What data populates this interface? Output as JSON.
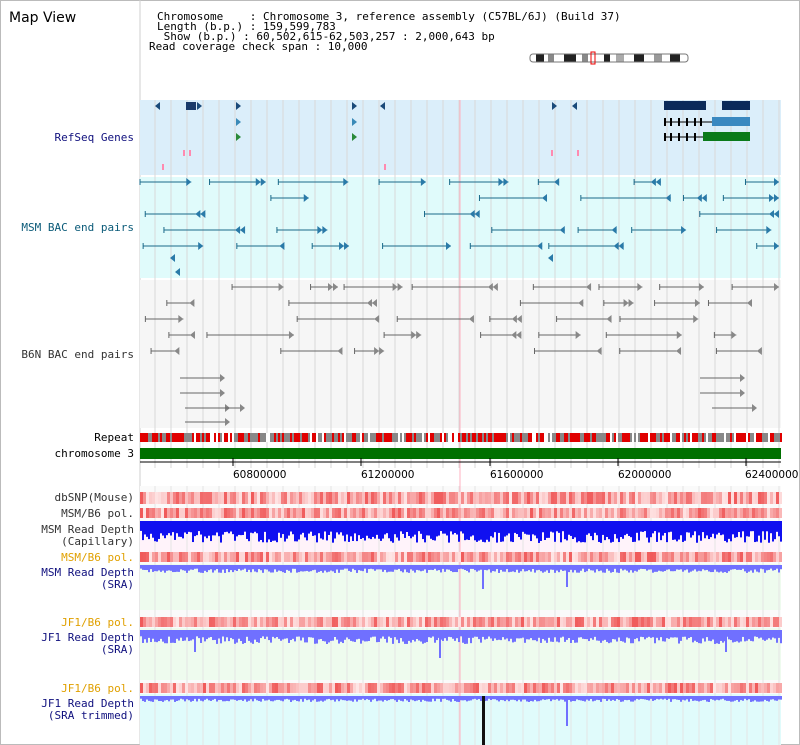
{
  "view_title": "Map View",
  "header": {
    "line1": "Chromosome    : Chromosome 3, reference assembly (C57BL/6J) (Build 37)",
    "line2": "Length (b.p.) : 159,599,783",
    "line3": " Show (b.p.) : 60,502,615-62,503,257 : 2,000,643 bp",
    "line4": "Read coverage check span : 10,000"
  },
  "tracks": {
    "refseq": "RefSeq Genes",
    "msm_bac": "MSM BAC end pairs",
    "b6n_bac": "B6N BAC end pairs",
    "repeat": "Repeat",
    "chromosome": "chromosome 3",
    "dbsnp": "dbSNP(Mouse)",
    "msm_b6_pol_1": "MSM/B6 pol.",
    "msm_depth_cap_1": "MSM Read Depth",
    "msm_depth_cap_2": "(Capillary)",
    "msm_b6_pol_2": "MSM/B6 pol.",
    "msm_depth_sra_1": "MSM Read Depth",
    "msm_depth_sra_2": "(SRA)",
    "jf1_b6_pol_1": "JF1/B6 pol.",
    "jf1_depth_sra_1": "JF1 Read Depth",
    "jf1_depth_sra_2": "(SRA)",
    "jf1_b6_pol_2": "JF1/B6 pol.",
    "jf1_depth_trim_1": "JF1 Read Depth",
    "jf1_depth_trim_2": "(SRA trimmed)"
  },
  "axis": {
    "ticks": [
      "60800000",
      "61200000",
      "61600000",
      "62000000",
      "62400000"
    ],
    "range_bp": [
      60502615,
      62503257
    ]
  },
  "colors": {
    "refseq_bg": "#dbeefa",
    "bac_bg": "#e0fbfb",
    "grid": "#d8d8d8",
    "chrom": "#007000",
    "repeat": "#e00000",
    "depth_blue": "#1010f0",
    "sra_blue": "#7070ff"
  }
}
